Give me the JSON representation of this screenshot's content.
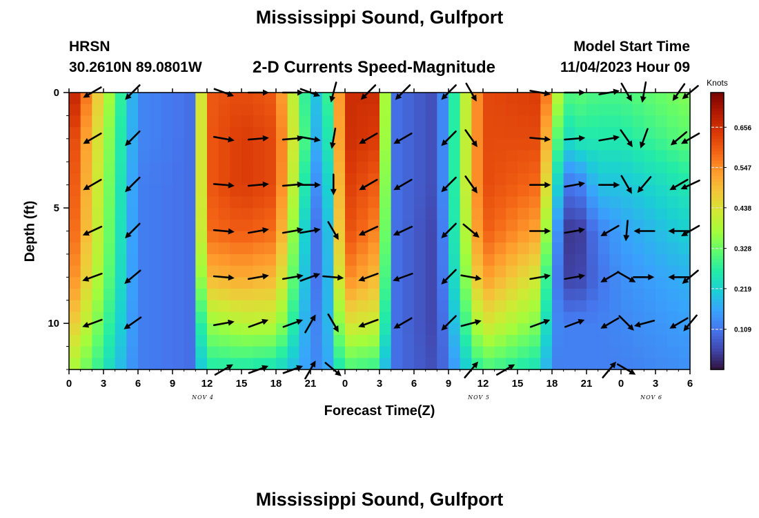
{
  "title": "Mississippi Sound, Gulfport",
  "title_repeat": "Mississippi Sound, Gulfport",
  "station": "HRSN",
  "coordinates": "30.2610N  89.0801W",
  "subtitle": "2-D Currents Speed-Magnitude",
  "model_start_label": "Model Start Time",
  "model_start_value": "11/04/2023 Hour 09",
  "chart_data": {
    "type": "heatmap",
    "xlabel": "Forecast Time(Z)",
    "ylabel": "Depth (ft)",
    "x_ticks": [
      "0",
      "3",
      "6",
      "9",
      "12",
      "15",
      "18",
      "21",
      "0",
      "3",
      "6",
      "9",
      "12",
      "15",
      "18",
      "21",
      "0",
      "3",
      "6"
    ],
    "x_dates": [
      {
        "label": "NOV 4",
        "tick_index": 4
      },
      {
        "label": "NOV 5",
        "tick_index": 12
      },
      {
        "label": "NOV 6",
        "tick_index": 17
      }
    ],
    "y_ticks": [
      0,
      5,
      10
    ],
    "ylim": [
      0,
      12
    ],
    "y_inverted": true,
    "colorbar": {
      "units": "Knots",
      "ticks": [
        "0.656",
        "0.547",
        "0.438",
        "0.328",
        "0.219",
        "0.109"
      ],
      "tick_values": [
        0.656,
        0.547,
        0.438,
        0.328,
        0.219,
        0.109
      ],
      "range": [
        0,
        0.75
      ],
      "colors": [
        "#30123b",
        "#4146ac",
        "#4675ed",
        "#39a2fc",
        "#1bcfd4",
        "#24eca6",
        "#61fc6c",
        "#a4fc3b",
        "#d1e834",
        "#f3c63a",
        "#fe9b2d",
        "#f36315",
        "#d93806",
        "#b11901",
        "#7a0402"
      ]
    },
    "time_hours": [
      0,
      6,
      10.5,
      12,
      15,
      18,
      20.5,
      22,
      24,
      26.5,
      28.5,
      32,
      36,
      41,
      42,
      43,
      44,
      46,
      48,
      54
    ],
    "depth_ft": [
      0,
      2,
      4,
      6,
      8,
      10,
      12
    ],
    "speed_knots": [
      [
        0.72,
        0.13,
        0.1,
        0.6,
        0.62,
        0.6,
        0.28,
        0.16,
        0.66,
        0.66,
        0.1,
        0.06,
        0.62,
        0.64,
        0.5,
        0.3,
        0.32,
        0.3,
        0.3,
        0.35
      ],
      [
        0.66,
        0.13,
        0.1,
        0.6,
        0.64,
        0.62,
        0.3,
        0.12,
        0.66,
        0.64,
        0.1,
        0.06,
        0.62,
        0.62,
        0.4,
        0.22,
        0.26,
        0.26,
        0.26,
        0.32
      ],
      [
        0.64,
        0.12,
        0.1,
        0.6,
        0.64,
        0.62,
        0.26,
        0.08,
        0.64,
        0.6,
        0.1,
        0.06,
        0.62,
        0.58,
        0.32,
        0.12,
        0.1,
        0.2,
        0.2,
        0.26
      ],
      [
        0.62,
        0.12,
        0.1,
        0.58,
        0.6,
        0.58,
        0.22,
        0.05,
        0.62,
        0.56,
        0.1,
        0.05,
        0.6,
        0.52,
        0.22,
        0.06,
        0.02,
        0.12,
        0.16,
        0.22
      ],
      [
        0.58,
        0.12,
        0.1,
        0.5,
        0.52,
        0.5,
        0.2,
        0.06,
        0.56,
        0.5,
        0.1,
        0.05,
        0.54,
        0.42,
        0.16,
        0.06,
        0.04,
        0.1,
        0.14,
        0.18
      ],
      [
        0.5,
        0.12,
        0.1,
        0.36,
        0.4,
        0.4,
        0.18,
        0.1,
        0.44,
        0.42,
        0.1,
        0.05,
        0.44,
        0.34,
        0.14,
        0.12,
        0.12,
        0.12,
        0.13,
        0.16
      ],
      [
        0.4,
        0.12,
        0.1,
        0.26,
        0.26,
        0.24,
        0.16,
        0.12,
        0.3,
        0.28,
        0.1,
        0.06,
        0.3,
        0.24,
        0.12,
        0.12,
        0.12,
        0.12,
        0.12,
        0.14
      ]
    ],
    "vectors": {
      "time_hours": [
        2,
        5.5,
        10.5,
        13.5,
        16.5,
        19.5,
        21,
        23,
        26,
        29,
        33,
        35,
        38,
        41,
        44,
        47,
        48.5,
        50,
        53,
        54
      ],
      "depth_ft": [
        0,
        2,
        4,
        6,
        8,
        10,
        12
      ],
      "direction_deg": [
        [
          240,
          225,
          null,
          110,
          90,
          90,
          110,
          195,
          225,
          225,
          225,
          150,
          null,
          100,
          90,
          80,
          150,
          190,
          215,
          230
        ],
        [
          240,
          225,
          null,
          100,
          85,
          85,
          100,
          190,
          240,
          240,
          225,
          145,
          null,
          95,
          85,
          80,
          145,
          200,
          230,
          240
        ],
        [
          240,
          225,
          null,
          95,
          85,
          85,
          90,
          180,
          240,
          240,
          225,
          145,
          null,
          90,
          80,
          90,
          150,
          220,
          240,
          245
        ],
        [
          245,
          225,
          null,
          95,
          80,
          80,
          80,
          150,
          245,
          245,
          225,
          130,
          null,
          90,
          80,
          240,
          185,
          270,
          270,
          240
        ],
        [
          250,
          230,
          null,
          95,
          80,
          80,
          70,
          95,
          250,
          250,
          225,
          100,
          null,
          80,
          80,
          240,
          120,
          90,
          270,
          230
        ],
        [
          250,
          235,
          null,
          80,
          70,
          70,
          30,
          150,
          250,
          240,
          225,
          75,
          null,
          70,
          70,
          240,
          135,
          255,
          240,
          220
        ],
        [
          null,
          null,
          null,
          60,
          70,
          70,
          30,
          130,
          null,
          null,
          null,
          40,
          60,
          null,
          null,
          40,
          120,
          null,
          null,
          null
        ]
      ]
    }
  }
}
